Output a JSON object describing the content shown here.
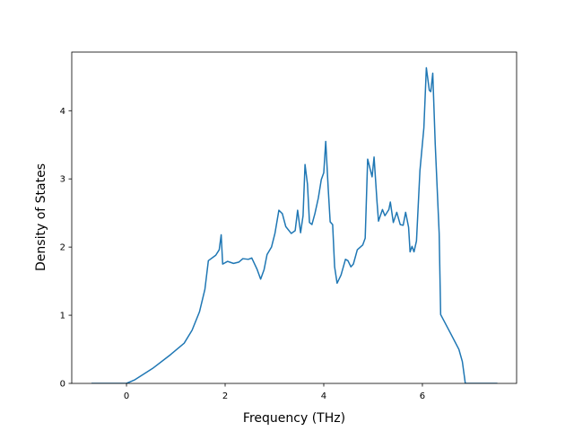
{
  "chart_data": {
    "type": "line",
    "xlabel": "Frequency (THz)",
    "ylabel": "Density of States",
    "xlim": [
      -1.11,
      7.91
    ],
    "ylim": [
      0,
      4.86
    ],
    "xticks": [
      0,
      2,
      4,
      6
    ],
    "yticks": [
      0,
      1,
      2,
      3,
      4
    ],
    "grid": false,
    "series": [
      {
        "color": "#1f77b4",
        "x": [
          -0.71,
          0,
          0.16,
          0.53,
          0.89,
          1.17,
          1.33,
          1.48,
          1.59,
          1.66,
          1.81,
          1.88,
          1.92,
          1.95,
          2.05,
          2.17,
          2.28,
          2.36,
          2.47,
          2.54,
          2.65,
          2.72,
          2.79,
          2.85,
          2.94,
          3.01,
          3.09,
          3.16,
          3.23,
          3.34,
          3.42,
          3.47,
          3.53,
          3.58,
          3.62,
          3.67,
          3.71,
          3.76,
          3.82,
          3.89,
          3.95,
          4.0,
          4.04,
          4.09,
          4.13,
          4.18,
          4.22,
          4.27,
          4.35,
          4.44,
          4.49,
          4.55,
          4.6,
          4.68,
          4.79,
          4.84,
          4.89,
          4.98,
          5.02,
          5.08,
          5.11,
          5.19,
          5.24,
          5.32,
          5.35,
          5.41,
          5.48,
          5.55,
          5.61,
          5.66,
          5.72,
          5.75,
          5.79,
          5.83,
          5.88,
          5.95,
          6.03,
          6.08,
          6.14,
          6.17,
          6.21,
          6.26,
          6.34,
          6.37,
          6.56,
          6.74,
          6.81,
          6.87,
          7.52
        ],
        "values": [
          0,
          0,
          0.05,
          0.22,
          0.42,
          0.59,
          0.78,
          1.05,
          1.38,
          1.8,
          1.88,
          1.96,
          2.18,
          1.75,
          1.79,
          1.76,
          1.78,
          1.83,
          1.82,
          1.84,
          1.67,
          1.53,
          1.67,
          1.89,
          2.0,
          2.2,
          2.54,
          2.49,
          2.3,
          2.2,
          2.24,
          2.54,
          2.21,
          2.46,
          3.21,
          2.92,
          2.36,
          2.33,
          2.49,
          2.72,
          2.99,
          3.09,
          3.55,
          2.86,
          2.37,
          2.33,
          1.71,
          1.47,
          1.59,
          1.82,
          1.8,
          1.71,
          1.75,
          1.96,
          2.03,
          2.13,
          3.29,
          3.03,
          3.32,
          2.66,
          2.38,
          2.55,
          2.46,
          2.55,
          2.66,
          2.36,
          2.51,
          2.33,
          2.32,
          2.51,
          2.29,
          1.93,
          2.01,
          1.93,
          2.09,
          3.12,
          3.75,
          4.63,
          4.3,
          4.28,
          4.55,
          3.51,
          2.2,
          1.01,
          0.75,
          0.5,
          0.32,
          0,
          0
        ]
      }
    ]
  }
}
